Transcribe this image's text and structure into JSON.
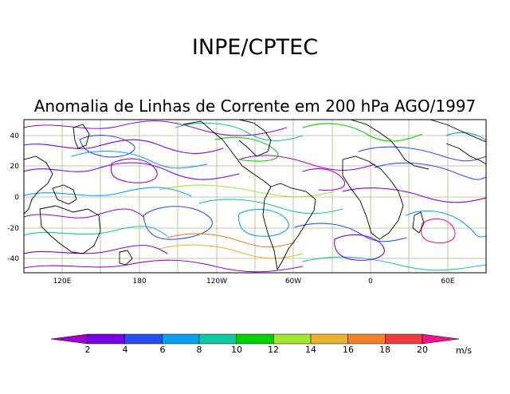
{
  "header": {
    "org": "INPE/CPTEC",
    "title": "Anomalia de Linhas de Corrente em 200 hPa AGO/1997"
  },
  "map": {
    "y_tick_labels": [
      "40",
      "20",
      "0",
      "-20",
      "-40"
    ],
    "x_tick_labels": [
      "120E",
      "180",
      "120W",
      "60W",
      "0",
      "60E"
    ]
  },
  "colorbar": {
    "ticks": [
      "2",
      "4",
      "6",
      "8",
      "10",
      "12",
      "14",
      "16",
      "18",
      "20"
    ],
    "units": "m/s",
    "colors": [
      "#a000c8",
      "#7a00e6",
      "#2850f0",
      "#0aa0f0",
      "#14c8a0",
      "#00d200",
      "#a0e632",
      "#e6b430",
      "#f08228",
      "#f03c3c",
      "#f0148c"
    ]
  }
}
